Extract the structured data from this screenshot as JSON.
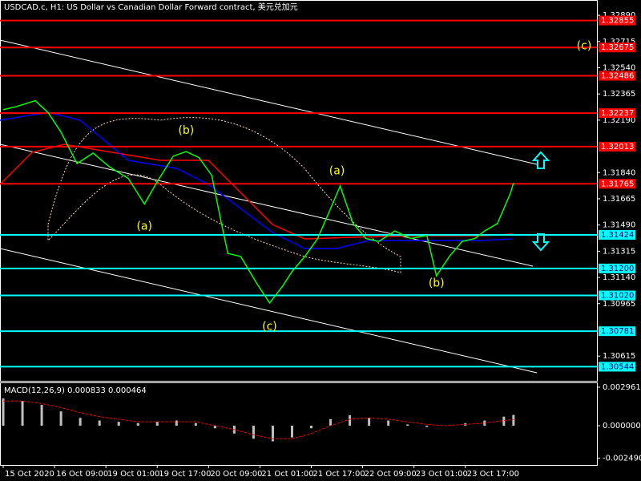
{
  "chart_data": {
    "type": "line",
    "title": "USDCAD.c, H1:  US Dollar vs Canadian Dollar Forward contract, 美元兑加元",
    "xlim": [
      0,
      186
    ],
    "xticks": [
      {
        "value": 1,
        "label": "15 Oct 2020"
      },
      {
        "value": 17,
        "label": "16 Oct 09:00"
      },
      {
        "value": 33,
        "label": "19 Oct 01:00"
      },
      {
        "value": 49,
        "label": "19 Oct 17:00"
      },
      {
        "value": 65,
        "label": "20 Oct 09:00"
      },
      {
        "value": 81,
        "label": "21 Oct 01:00"
      },
      {
        "value": 97,
        "label": "21 Oct 17:00"
      },
      {
        "value": 113,
        "label": "22 Oct 09:00"
      },
      {
        "value": 129,
        "label": "23 Oct 01:00"
      },
      {
        "value": 145,
        "label": "23 Oct 17:00"
      }
    ],
    "ylim": [
      1.3045,
      1.32992
    ],
    "yticks": [
      {
        "value": 1.3289,
        "label": "1.32890"
      },
      {
        "value": 1.32715,
        "label": "1.32715"
      },
      {
        "value": 1.3254,
        "label": "1.32540"
      },
      {
        "value": 1.32365,
        "label": "1.32365"
      },
      {
        "value": 1.3219,
        "label": "1.32190"
      },
      {
        "value": 1.3184,
        "label": "1.31840"
      },
      {
        "value": 1.31665,
        "label": "1.31665"
      },
      {
        "value": 1.3149,
        "label": "1.31490"
      },
      {
        "value": 1.31315,
        "label": "1.31315"
      },
      {
        "value": 1.3114,
        "label": "1.31140"
      },
      {
        "value": 1.30965,
        "label": "1.30965"
      },
      {
        "value": 1.30615,
        "label": "1.30615"
      }
    ],
    "series": [
      {
        "name": "USDCAD.c",
        "color": "#00ff00",
        "x": [
          1,
          5,
          11,
          15,
          19,
          24,
          29,
          34,
          40,
          45,
          49,
          54,
          58,
          62,
          66,
          69,
          71,
          75,
          80,
          84,
          88,
          91,
          95,
          99,
          103,
          106,
          110,
          114,
          118,
          123,
          128,
          133,
          136,
          140,
          144,
          148,
          151,
          155,
          159,
          160
        ],
        "values": [
          1.3226,
          1.3228,
          1.3232,
          1.3224,
          1.3211,
          1.319,
          1.3197,
          1.3188,
          1.318,
          1.3163,
          1.3178,
          1.3195,
          1.3198,
          1.3194,
          1.3182,
          1.315,
          1.313,
          1.3128,
          1.311,
          1.3097,
          1.3108,
          1.3118,
          1.3128,
          1.314,
          1.316,
          1.3175,
          1.315,
          1.314,
          1.3138,
          1.3145,
          1.314,
          1.3142,
          1.3115,
          1.3128,
          1.3138,
          1.314,
          1.3145,
          1.315,
          1.317,
          1.3177
        ]
      }
    ],
    "levels": [
      {
        "value": 1.32855,
        "label": "1.32855",
        "color": "#ff0000"
      },
      {
        "value": 1.32675,
        "label": "1.32675",
        "color": "#ff0000"
      },
      {
        "value": 1.32486,
        "label": "1.32486",
        "color": "#ff0000"
      },
      {
        "value": 1.32237,
        "label": "1.32237",
        "color": "#ff0000"
      },
      {
        "value": 1.32013,
        "label": "1.32013",
        "color": "#ff0000"
      },
      {
        "value": 1.31765,
        "label": "1.31765",
        "color": "#ff0000"
      },
      {
        "value": 1.31424,
        "label": "1.31424",
        "color": "#00ffff"
      },
      {
        "value": 1.312,
        "label": "1.31200",
        "color": "#00ffff"
      },
      {
        "value": 1.3102,
        "label": "1.31020",
        "color": "#00ffff"
      },
      {
        "value": 1.30781,
        "label": "1.30781",
        "color": "#00ffff"
      },
      {
        "value": 1.30544,
        "label": "1.30544",
        "color": "#00ffff"
      }
    ],
    "annotations": [
      {
        "text": "(c)",
        "x": 182,
        "y": 1.32685
      },
      {
        "text": "(b)",
        "x": 58,
        "y": 1.3212
      },
      {
        "text": "(a)",
        "x": 45,
        "y": 1.3148
      },
      {
        "text": "(a)",
        "x": 105,
        "y": 1.3185
      },
      {
        "text": "(c)",
        "x": 84,
        "y": 1.3081
      },
      {
        "text": "(b)",
        "x": 136,
        "y": 1.311
      }
    ],
    "macd": {
      "label": "MACD(12,26,9) 0.000833 0.000464",
      "ylim": [
        -0.00302,
        0.00327
      ],
      "yticks": [
        {
          "value": 0.002961,
          "label": "0.002961"
        },
        {
          "value": 0,
          "label": "0.000000"
        },
        {
          "value": -0.00249,
          "label": "-0.002490"
        }
      ],
      "x": [
        1,
        7,
        13,
        19,
        25,
        31,
        37,
        43,
        49,
        55,
        61,
        67,
        73,
        79,
        85,
        91,
        97,
        103,
        109,
        115,
        121,
        127,
        133,
        139,
        145,
        151,
        157,
        160
      ],
      "histogram": [
        0.0021,
        0.0019,
        0.0016,
        0.0011,
        0.0006,
        0.0004,
        0.0003,
        0.0002,
        0.0003,
        0.0004,
        0.0002,
        -0.0002,
        -0.0006,
        -0.001,
        -0.0012,
        -0.0009,
        -0.0002,
        0.0005,
        0.0008,
        0.0006,
        0.0004,
        0.0001,
        -0.0001,
        0,
        0.0002,
        0.0004,
        0.0007,
        0.000833
      ],
      "signal": [
        0.0019,
        0.0019,
        0.0017,
        0.0014,
        0.001,
        0.0007,
        0.0005,
        0.0003,
        0.0003,
        0.0003,
        0.0003,
        0,
        -0.0003,
        -0.0007,
        -0.001,
        -0.001,
        -0.0006,
        0,
        0.0005,
        0.0006,
        0.0005,
        0.0003,
        0.0001,
        0,
        0.0001,
        0.0002,
        0.0004,
        0.000464
      ]
    }
  }
}
